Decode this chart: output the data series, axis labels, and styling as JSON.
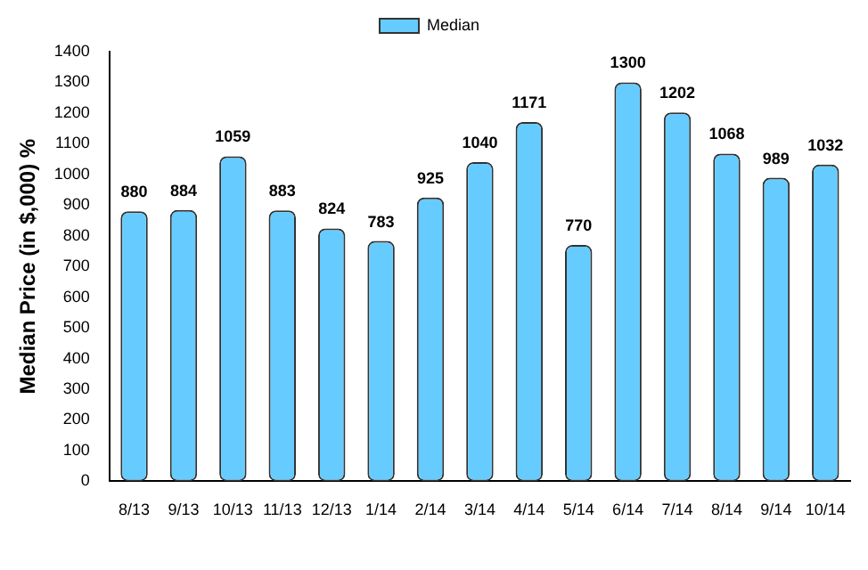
{
  "chart_data": {
    "type": "bar",
    "ylabel": "Median Price (in $,000) %",
    "categories": [
      "8/13",
      "9/13",
      "10/13",
      "11/13",
      "12/13",
      "1/14",
      "2/14",
      "3/14",
      "4/14",
      "5/14",
      "6/14",
      "7/14",
      "8/14",
      "9/14",
      "10/14"
    ],
    "series": [
      {
        "name": "Median",
        "color": "#66ccff",
        "values": [
          880,
          884,
          1059,
          883,
          824,
          783,
          925,
          1040,
          1171,
          770,
          1300,
          1202,
          1068,
          989,
          1032
        ]
      }
    ],
    "ylim": [
      0,
      1400
    ],
    "yticks": [
      0,
      100,
      200,
      300,
      400,
      500,
      600,
      700,
      800,
      900,
      1000,
      1100,
      1200,
      1300,
      1400
    ],
    "grid": false,
    "legend": "top",
    "data_labels": true
  }
}
